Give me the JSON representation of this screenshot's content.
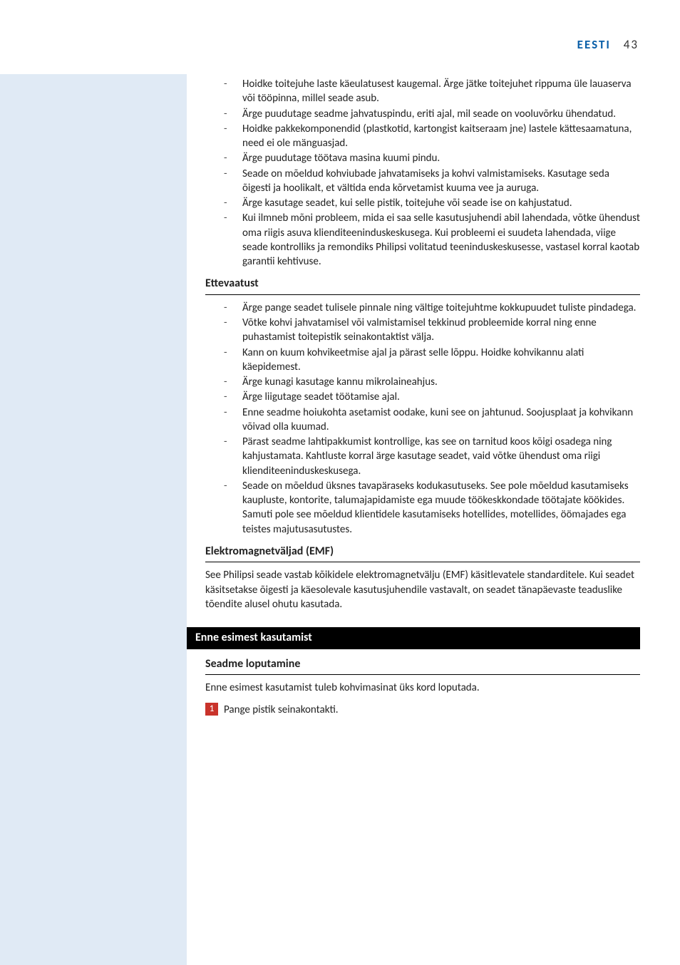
{
  "header": {
    "lang": "EESTI",
    "page": "43"
  },
  "list1": [
    "Hoidke toitejuhe laste käeulatusest kaugemal. Ärge jätke toitejuhet rippuma üle lauaserva või tööpinna, millel seade asub.",
    "Ärge puudutage seadme jahvatuspindu, eriti ajal, mil seade on vooluvõrku ühendatud.",
    "Hoidke pakkekomponendid (plastkotid, kartongist kaitseraam jne) lastele kättesaamatuna, need ei ole mänguasjad.",
    "Ärge puudutage töötava masina kuumi pindu.",
    "Seade on mõeldud kohviubade jahvatamiseks ja kohvi valmistamiseks. Kasutage seda õigesti ja hoolikalt, et vältida enda kõrvetamist kuuma vee ja auruga.",
    "Ärge kasutage seadet, kui selle pistik, toitejuhe või seade ise on kahjustatud.",
    "Kui ilmneb mõni probleem, mida ei saa selle kasutusjuhendi abil lahendada, võtke ühendust oma riigis asuva klienditeeninduskeskusega. Kui probleemi ei suudeta lahendada, viige seade kontrolliks ja remondiks Philipsi volitatud teeninduskeskusesse, vastasel korral kaotab garantii kehtivuse."
  ],
  "h1": "Ettevaatust",
  "list2": [
    "Ärge pange seadet tulisele pinnale ning vältige toitejuhtme kokkupuudet tuliste pindadega.",
    "Võtke kohvi jahvatamisel või valmistamisel tekkinud probleemide korral ning enne puhastamist toitepistik seinakontaktist välja.",
    "Kann on kuum kohvikeetmise ajal ja pärast selle lõppu. Hoidke kohvikannu alati käepidemest.",
    "Ärge kunagi kasutage kannu mikrolaineahjus.",
    "Ärge liigutage seadet töötamise ajal.",
    "Enne seadme hoiukohta asetamist oodake, kuni see on jahtunud. Soojusplaat ja kohvikann võivad olla kuumad.",
    "Pärast seadme lahtipakkumist kontrollige, kas see on tarnitud koos kõigi osadega ning kahjustamata. Kahtluste korral ärge kasutage seadet, vaid võtke ühendust oma riigi klienditeeninduskeskusega.",
    "Seade on mõeldud üksnes tavapäraseks kodukasutuseks. See pole mõeldud kasutamiseks kaupluste, kontorite, talumajapidamiste ega muude töökeskkondade töötajate köökides. Samuti pole see mõeldud klientidele kasutamiseks hotellides, motellides, öömajades ega teistes majutusasutustes."
  ],
  "h2": "Elektromagnetväljad (EMF)",
  "emf_para": "See Philipsi seade vastab kõikidele elektromagnetvälju (EMF) käsitlevatele standarditele. Kui seadet käsitsetakse õigesti ja käesolevale kasutusjuhendile vastavalt, on seadet tänapäevaste teaduslike tõendite alusel ohutu kasutada.",
  "blackbar": "Enne esimest kasutamist",
  "h3": "Seadme loputamine",
  "flush_para": "Enne esimest kasutamist tuleb kohvimasinat üks kord loputada.",
  "step1_num": "1",
  "step1_txt": "Pange pistik seinakontakti."
}
